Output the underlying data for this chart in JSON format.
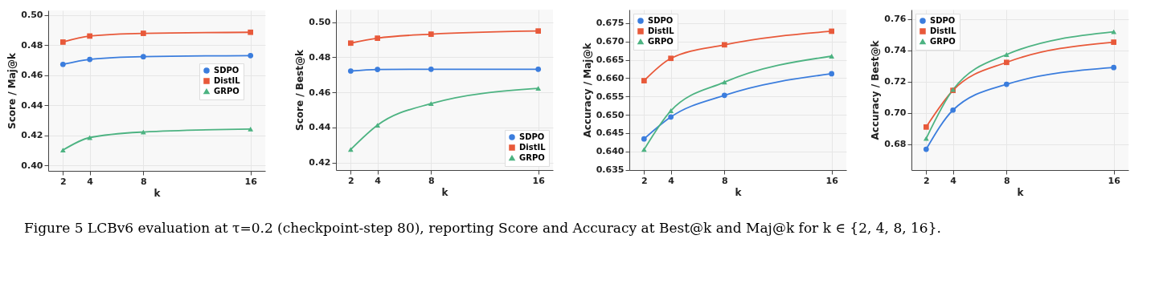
{
  "chart_data": [
    {
      "type": "line",
      "xlabel": "k",
      "ylabel": "Score / Maj@k",
      "x": [
        2,
        4,
        8,
        16
      ],
      "xlim": [
        0.9,
        17.1
      ],
      "xticks": [
        2,
        4,
        8,
        16
      ],
      "ylim": [
        0.3965,
        0.503
      ],
      "yticks": [
        {
          "value": 0.4,
          "label": "0.40"
        },
        0.42,
        0.44,
        0.46,
        0.48,
        {
          "value": 0.5,
          "label": "0.50"
        }
      ],
      "grid": true,
      "legend": "right",
      "series": [
        {
          "name": "SDPO",
          "color": "#3b7ddd",
          "marker": "circle",
          "values": [
            0.4672,
            0.4705,
            0.4723,
            0.473
          ]
        },
        {
          "name": "DistIL",
          "color": "#e8593a",
          "marker": "square",
          "values": [
            0.482,
            0.486,
            0.4878,
            0.4885
          ]
        },
        {
          "name": "GRPO",
          "color": "#4db382",
          "marker": "triangle",
          "values": [
            0.4103,
            0.4186,
            0.4223,
            0.4243
          ]
        }
      ],
      "annotations": [
        "Figure 5  LCBv6 evaluation at τ=0.2 (checkpoint-step 80), reporting Score and Accuracy at Best@k and Maj@k for k ∈ {2, 4, 8, 16}."
      ]
    },
    {
      "type": "line",
      "xlabel": "k",
      "ylabel": "Score / Best@k",
      "x": [
        2,
        4,
        8,
        16
      ],
      "xlim": [
        0.9,
        17.1
      ],
      "xticks": [
        2,
        4,
        8,
        16
      ],
      "ylim": [
        0.4157,
        0.5072
      ],
      "yticks": [
        0.42,
        0.44,
        0.46,
        0.48,
        {
          "value": 0.5,
          "label": "0.50"
        }
      ],
      "grid": true,
      "legend": "bottom right",
      "series": [
        {
          "name": "SDPO",
          "color": "#3b7ddd",
          "marker": "circle",
          "values": [
            0.4722,
            0.4731,
            0.4732,
            0.4732
          ]
        },
        {
          "name": "DistIL",
          "color": "#e8593a",
          "marker": "square",
          "values": [
            0.4881,
            0.4909,
            0.4932,
            0.495
          ]
        },
        {
          "name": "GRPO",
          "color": "#4db382",
          "marker": "triangle",
          "values": [
            0.4274,
            0.4413,
            0.4536,
            0.4623
          ]
        }
      ]
    },
    {
      "type": "line",
      "xlabel": "k",
      "ylabel": "Accuracy / Maj@k",
      "x": [
        2,
        4,
        8,
        16
      ],
      "xlim": [
        0.9,
        17.1
      ],
      "xticks": [
        2,
        4,
        8,
        16
      ],
      "ylim": [
        0.6349,
        0.6787
      ],
      "yticks": [
        0.635,
        {
          "value": 0.64,
          "label": "0.640"
        },
        0.645,
        {
          "value": 0.65,
          "label": "0.650"
        },
        0.655,
        {
          "value": 0.66,
          "label": "0.660"
        },
        0.665,
        {
          "value": 0.67,
          "label": "0.670"
        },
        0.675
      ],
      "grid": true,
      "legend": "top left",
      "series": [
        {
          "name": "SDPO",
          "color": "#3b7ddd",
          "marker": "circle",
          "values": [
            0.6434,
            0.6494,
            0.6553,
            0.6612
          ]
        },
        {
          "name": "DistIL",
          "color": "#e8593a",
          "marker": "square",
          "values": [
            0.6593,
            0.6654,
            0.6691,
            0.6728
          ]
        },
        {
          "name": "GRPO",
          "color": "#4db382",
          "marker": "triangle",
          "values": [
            0.6405,
            0.6511,
            0.6589,
            0.666
          ]
        }
      ]
    },
    {
      "type": "line",
      "xlabel": "k",
      "ylabel": "Accuracy / Best@k",
      "x": [
        2,
        4,
        8,
        16
      ],
      "xlim": [
        0.9,
        17.1
      ],
      "xticks": [
        2,
        4,
        8,
        16
      ],
      "ylim": [
        0.6634,
        0.7659
      ],
      "yticks": [
        0.68,
        {
          "value": 0.7,
          "label": "0.70"
        },
        0.72,
        0.74,
        0.76
      ],
      "grid": true,
      "legend": "top left",
      "series": [
        {
          "name": "SDPO",
          "color": "#3b7ddd",
          "marker": "circle",
          "values": [
            0.6767,
            0.7017,
            0.7182,
            0.7289
          ]
        },
        {
          "name": "DistIL",
          "color": "#e8593a",
          "marker": "square",
          "values": [
            0.6909,
            0.7143,
            0.7322,
            0.7451
          ]
        },
        {
          "name": "GRPO",
          "color": "#4db382",
          "marker": "triangle",
          "values": [
            0.6836,
            0.7148,
            0.7372,
            0.7517
          ]
        }
      ]
    }
  ]
}
